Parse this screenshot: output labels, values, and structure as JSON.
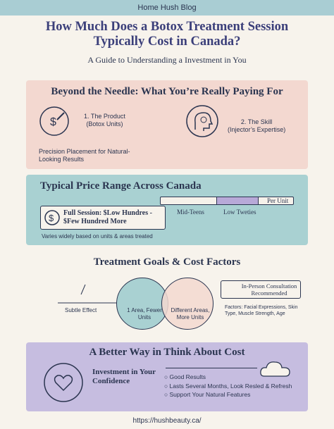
{
  "header": {
    "blog": "Home Hush Blog",
    "title": "How Much Does a Botox Treatment Session Typically Cost in Canada?",
    "subtitle": "A Guide to Understanding a Investment in You"
  },
  "sections": [
    {
      "title": "Beyond the Needle: What You’re Really Paying For",
      "product": "1. The Product",
      "product_sub": "(Botox Units)",
      "skill": "2. The Skill",
      "skill_sub": "(Injector’s Expertise)",
      "note": "Precision Placement for Natural-Looking Results"
    },
    {
      "title": "Typical Price Range Across Canada",
      "unit": "Per Unit",
      "low": "Mid-Teens",
      "high": "Low Tweties",
      "session": "Full Session: $Low Hundres - $Few Hundred More",
      "note": "Varies widely based on units & areas treated"
    },
    {
      "title": "Treatment Goals & Cost Factors",
      "subtle": "Subtle Effect",
      "one_area": "1 Area, Fewer Units",
      "more_areas": "Different Areas, More Units",
      "consult": "In-Person Consultation Recommended",
      "factors": "Factors: Facial Expressions, Skin Type, Muscle Strength, Age"
    },
    {
      "title": "A Better Way in Think About Cost",
      "confidence": "Investment in Your Confidence",
      "benefits": [
        "Good Results",
        "Lasts Several Months, Look Resled & Refresh",
        "Support Your Natural Features"
      ]
    }
  ],
  "footer": {
    "url": "https://hushbeauty.ca/"
  }
}
